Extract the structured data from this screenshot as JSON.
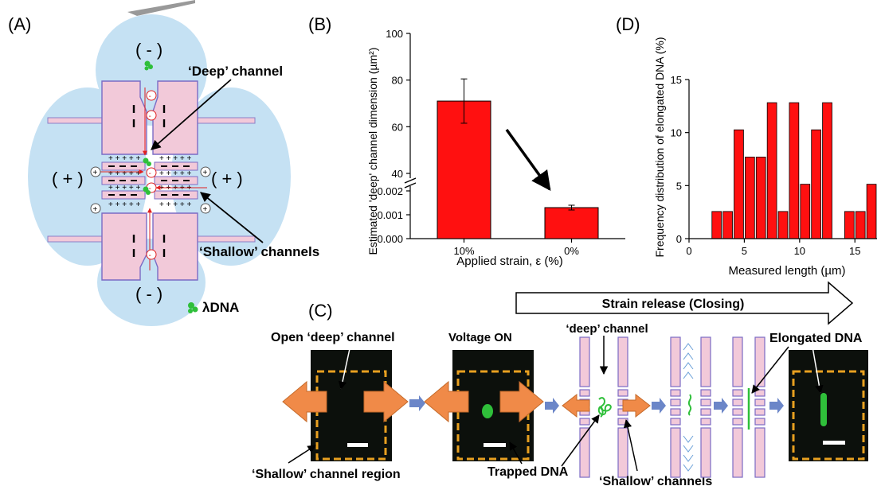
{
  "panels": {
    "a": {
      "label": "(A)",
      "reservoir_top": "( - )",
      "reservoir_bottom": "( - )",
      "reservoir_left": "( + )",
      "reservoir_right": "( + )",
      "deep_channel": "‘Deep’ channel",
      "shallow_channels": "‘Shallow’ channels",
      "dna_legend": "λDNA",
      "minus": "-",
      "plus": "+"
    },
    "b": {
      "label": "(B)"
    },
    "c": {
      "label": "(C)",
      "strain_release": "Strain release (Closing)",
      "open_deep": "Open ‘deep’ channel",
      "voltage_on": "Voltage ON",
      "deep_channel": "‘deep’ channel",
      "elongated": "Elongated DNA",
      "shallow_region": "‘Shallow’ channel region",
      "trapped": "Trapped DNA",
      "shallow_channels": "‘Shallow’ channels"
    },
    "d": {
      "label": "(D)"
    }
  },
  "chart_data": [
    {
      "type": "bar",
      "categories": [
        "10%",
        "0%"
      ],
      "values": [
        71,
        0.0013
      ],
      "errors": [
        9.5,
        0.0001
      ],
      "bar_color": "#ff1010",
      "xlabel": "Applied strain, ε  (%)",
      "ylabel": "Estimated 'deep' channel dimension (µm²)",
      "y_axis_break": true,
      "ylim_lower": [
        0,
        0.002
      ],
      "ylim_upper": [
        40,
        100
      ],
      "yticks_lower": [
        "0.000",
        "0.001",
        "0.002"
      ],
      "yticks_upper": [
        "40",
        "60",
        "80",
        "100"
      ]
    },
    {
      "type": "bar",
      "subtype": "histogram",
      "x": [
        2.5,
        3.5,
        4.5,
        5.5,
        6.5,
        7.5,
        8.5,
        9.5,
        10.5,
        11.5,
        12.5,
        14.5,
        15.5,
        16.5
      ],
      "values": [
        2.56,
        2.56,
        10.26,
        7.69,
        7.69,
        12.82,
        2.56,
        12.82,
        5.13,
        10.26,
        12.82,
        2.56,
        2.56,
        5.13
      ],
      "bin_width": 1,
      "bar_color": "#ff1010",
      "xlabel": "Measured length (µm)",
      "ylabel": "Frequency distribution of elongated DNA (%)",
      "xlim": [
        0,
        17
      ],
      "ylim": [
        0,
        15
      ],
      "xticks": [
        "0",
        "5",
        "10",
        "15"
      ],
      "yticks": [
        "0",
        "5",
        "10",
        "15"
      ]
    }
  ]
}
